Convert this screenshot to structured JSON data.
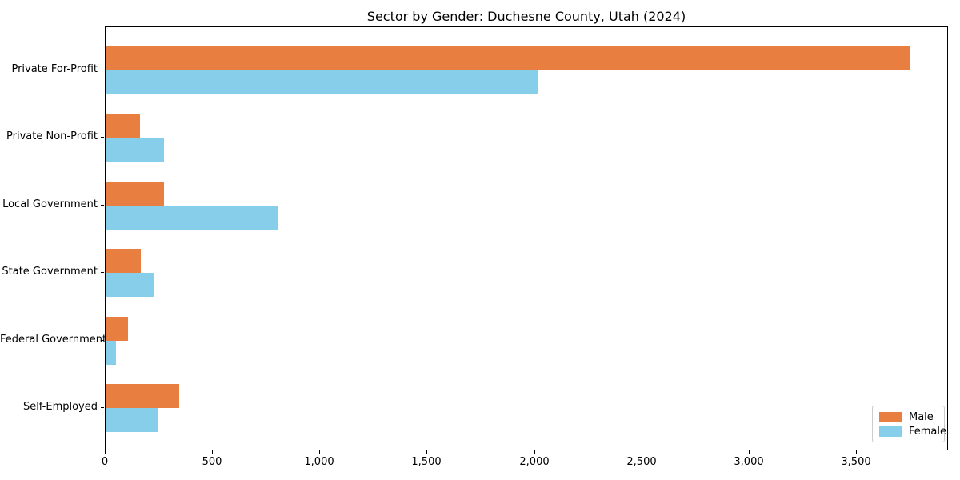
{
  "chart_data": {
    "type": "bar",
    "orientation": "horizontal",
    "title": "Sector by Gender: Duchesne County, Utah (2024)",
    "categories": [
      "Private For-Profit",
      "Private Non-Profit",
      "Local Government",
      "State Government",
      "Federal Government",
      "Self-Employed"
    ],
    "series": [
      {
        "name": "Male",
        "color": "#e87e40",
        "values": [
          3745,
          160,
          272,
          164,
          105,
          344
        ]
      },
      {
        "name": "Female",
        "color": "#87ceeb",
        "values": [
          2015,
          272,
          804,
          226,
          48,
          247
        ]
      }
    ],
    "xlabel": "",
    "ylabel": "",
    "xlim": [
      0,
      3929
    ],
    "xticks": [
      0,
      500,
      1000,
      1500,
      2000,
      2500,
      3000,
      3500
    ],
    "xtick_labels": [
      "0",
      "500",
      "1,000",
      "1,500",
      "2,000",
      "2,500",
      "3,000",
      "3,500"
    ],
    "grid": false,
    "legend_position": "lower right",
    "spine_color": "#000000",
    "background_color": "#ffffff"
  }
}
